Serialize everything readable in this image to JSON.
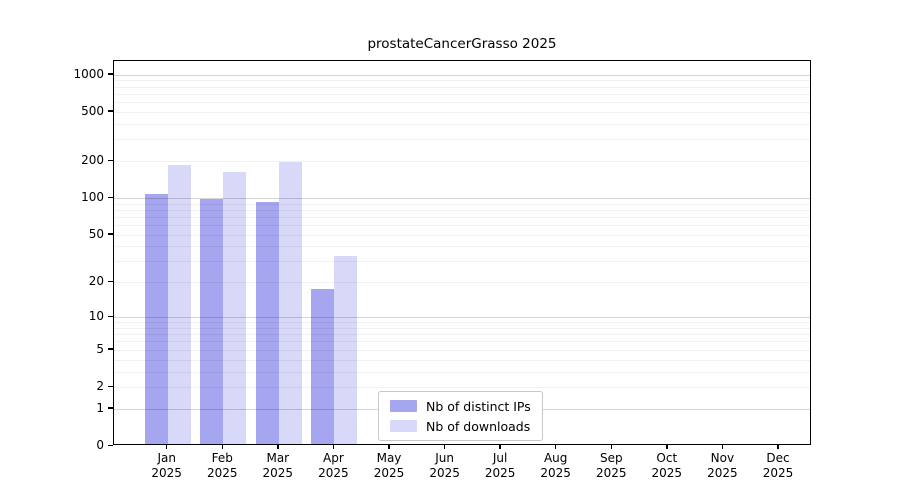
{
  "title": "prostateCancerGrasso 2025",
  "chart_data": {
    "type": "bar",
    "title": "prostateCancerGrasso 2025",
    "xlabel": "",
    "ylabel": "",
    "y_scale": "log10(value+1)",
    "ylim": [
      0,
      1290
    ],
    "grid": true,
    "legend_position": "bottom-center-inside",
    "categories": [
      "Jan",
      "Feb",
      "Mar",
      "Apr",
      "May",
      "Jun",
      "Jul",
      "Aug",
      "Sep",
      "Oct",
      "Nov",
      "Dec"
    ],
    "category_year": "2025",
    "y_ticks": [
      0,
      1,
      2,
      5,
      10,
      20,
      50,
      100,
      200,
      500,
      1000
    ],
    "series": [
      {
        "name": "Nb of distinct IPs",
        "color": "#a5a5f0",
        "values": [
          103,
          95,
          90,
          17,
          0,
          0,
          0,
          0,
          0,
          0,
          0,
          0
        ]
      },
      {
        "name": "Nb of downloads",
        "color": "#d8d8f8",
        "values": [
          178,
          157,
          189,
          32,
          0,
          0,
          0,
          0,
          0,
          0,
          0,
          0
        ]
      }
    ]
  },
  "colors": {
    "axis": "#000000",
    "major_grid": "#d9d9d9",
    "minor_grid": "#f0f0f0",
    "background": "#ffffff"
  }
}
